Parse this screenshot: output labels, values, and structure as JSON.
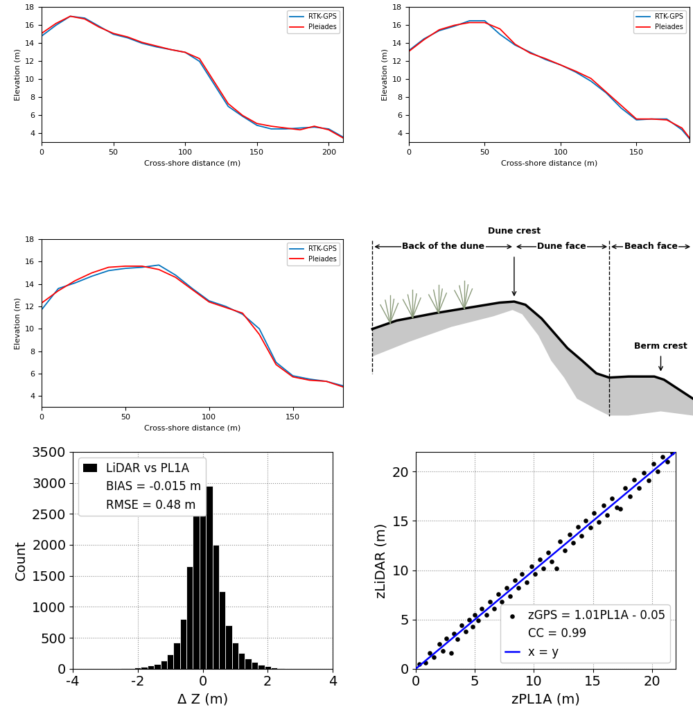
{
  "chart_data": [
    {
      "type": "line",
      "xlabel": "Cross-shore distance (m)",
      "ylabel": "Elevation (m)",
      "x": [
        0,
        10,
        20,
        30,
        40,
        50,
        60,
        70,
        80,
        90,
        100,
        110,
        120,
        130,
        140,
        150,
        160,
        170,
        180,
        190,
        200,
        210
      ],
      "series": [
        {
          "name": "RTK-GPS",
          "color": "#0072bd",
          "values": [
            14.8,
            16.0,
            17.0,
            16.8,
            15.9,
            15.0,
            14.6,
            14.0,
            13.6,
            13.3,
            13.0,
            12.0,
            9.5,
            7.0,
            5.9,
            4.9,
            4.5,
            4.5,
            4.6,
            4.7,
            4.5,
            3.6
          ]
        },
        {
          "name": "Pleiades",
          "color": "#ff0000",
          "values": [
            15.1,
            16.2,
            17.0,
            16.7,
            15.8,
            15.1,
            14.7,
            14.1,
            13.7,
            13.3,
            13.0,
            12.3,
            9.8,
            7.3,
            6.0,
            5.1,
            4.8,
            4.6,
            4.4,
            4.8,
            4.4,
            3.5
          ]
        }
      ],
      "xlim": [
        0,
        210
      ],
      "ylim": [
        3,
        18
      ],
      "xticks": [
        0,
        50,
        100,
        150,
        200
      ],
      "yticks": [
        4,
        6,
        8,
        10,
        12,
        14,
        16,
        18
      ],
      "legend": "upper right",
      "line_style": "solid",
      "grid": false
    },
    {
      "type": "line",
      "xlabel": "Cross-shore distance (m)",
      "ylabel": "Elevation (m)",
      "x": [
        0,
        10,
        20,
        30,
        40,
        50,
        60,
        70,
        80,
        90,
        100,
        110,
        120,
        130,
        140,
        150,
        160,
        170,
        180,
        185
      ],
      "series": [
        {
          "name": "RTK-GPS",
          "color": "#0072bd",
          "values": [
            13.2,
            14.5,
            15.4,
            15.9,
            16.5,
            16.5,
            15.0,
            13.8,
            13.0,
            12.2,
            11.6,
            10.8,
            9.8,
            8.5,
            6.8,
            5.5,
            5.6,
            5.6,
            4.4,
            3.4
          ]
        },
        {
          "name": "Pleiades",
          "color": "#ff0000",
          "values": [
            13.1,
            14.4,
            15.5,
            16.0,
            16.3,
            16.3,
            15.6,
            13.9,
            12.9,
            12.3,
            11.6,
            10.9,
            10.1,
            8.6,
            7.1,
            5.6,
            5.6,
            5.5,
            4.6,
            3.5
          ]
        }
      ],
      "xlim": [
        0,
        185
      ],
      "ylim": [
        3,
        18
      ],
      "xticks": [
        0,
        50,
        100,
        150
      ],
      "yticks": [
        4,
        6,
        8,
        10,
        12,
        14,
        16,
        18
      ],
      "legend": "upper right",
      "line_style": "solid",
      "grid": false
    },
    {
      "type": "line",
      "xlabel": "Cross-shore distance (m)",
      "ylabel": "Elevation (m)",
      "x": [
        0,
        10,
        20,
        30,
        40,
        50,
        60,
        70,
        80,
        90,
        100,
        110,
        120,
        130,
        140,
        150,
        160,
        170,
        180
      ],
      "series": [
        {
          "name": "RTK-GPS",
          "color": "#0072bd",
          "values": [
            11.7,
            13.6,
            14.1,
            14.7,
            15.2,
            15.4,
            15.5,
            15.7,
            14.8,
            13.6,
            12.5,
            12.0,
            11.3,
            10.0,
            7.0,
            5.8,
            5.5,
            5.3,
            4.9
          ]
        },
        {
          "name": "Pleiades",
          "color": "#ff0000",
          "values": [
            12.3,
            13.4,
            14.3,
            15.0,
            15.5,
            15.6,
            15.6,
            15.3,
            14.6,
            13.5,
            12.4,
            11.9,
            11.4,
            9.5,
            6.8,
            5.7,
            5.4,
            5.3,
            4.8
          ]
        }
      ],
      "xlim": [
        0,
        180
      ],
      "ylim": [
        3,
        18
      ],
      "xticks": [
        0,
        50,
        100,
        150
      ],
      "yticks": [
        4,
        6,
        8,
        10,
        12,
        14,
        16,
        18
      ],
      "legend": "upper right",
      "line_style": "solid",
      "grid": false
    },
    {
      "type": "histogram",
      "xlabel": "Δ Z (m)",
      "ylabel": "Count",
      "bins": [
        -2.5,
        -2.3,
        -2.1,
        -1.9,
        -1.7,
        -1.5,
        -1.3,
        -1.1,
        -0.9,
        -0.7,
        -0.5,
        -0.3,
        -0.1,
        0.1,
        0.3,
        0.5,
        0.7,
        0.9,
        1.1,
        1.3,
        1.5,
        1.7,
        1.9,
        2.1,
        2.3,
        2.5
      ],
      "series": [
        {
          "name": "LiDAR vs PL1A",
          "color": "#000000",
          "values": [
            5,
            10,
            20,
            30,
            50,
            80,
            130,
            230,
            420,
            800,
            1650,
            2700,
            3400,
            2950,
            2000,
            1250,
            700,
            420,
            260,
            170,
            110,
            70,
            40,
            20,
            10
          ]
        }
      ],
      "annotations": [
        "BIAS = -0.015 m",
        "RMSE = 0.48 m"
      ],
      "xlim": [
        -4,
        4
      ],
      "ylim": [
        0,
        3500
      ],
      "xticks": [
        -4,
        -2,
        0,
        2,
        4
      ],
      "yticks": [
        0,
        500,
        1000,
        1500,
        2000,
        2500,
        3000,
        3500
      ],
      "legend": "upper left",
      "grid": true
    },
    {
      "type": "scatter",
      "xlabel": "zPL1A (m)",
      "ylabel": "zLiDAR (m)",
      "x": [
        0.3,
        0.8,
        1.2,
        1.5,
        2.0,
        2.3,
        2.6,
        3.0,
        3.2,
        3.5,
        3.9,
        4.2,
        4.5,
        4.8,
        5.0,
        5.3,
        5.6,
        6.0,
        6.3,
        6.6,
        7.0,
        7.3,
        7.7,
        8.0,
        8.4,
        8.7,
        9.0,
        9.4,
        9.8,
        10.1,
        10.5,
        10.8,
        11.2,
        11.5,
        11.9,
        12.2,
        12.6,
        13.0,
        13.3,
        13.7,
        14.0,
        14.4,
        14.8,
        15.1,
        15.5,
        15.9,
        16.2,
        16.6,
        17.0,
        17.3,
        17.7,
        18.1,
        18.5,
        18.9,
        19.3,
        19.7,
        20.1,
        20.5,
        20.9,
        21.3,
        21.7
      ],
      "series": [
        {
          "name": "zGPS = 1.01PL1A - 0.05",
          "color": "#000000",
          "marker": "circle",
          "values": [
            0.5,
            0.6,
            1.6,
            1.2,
            2.5,
            1.8,
            3.1,
            1.6,
            3.6,
            3.0,
            4.4,
            3.8,
            5.0,
            4.3,
            5.5,
            4.9,
            6.1,
            5.5,
            6.8,
            6.1,
            7.6,
            6.8,
            8.2,
            7.4,
            9.0,
            8.2,
            9.6,
            8.8,
            10.4,
            9.6,
            11.1,
            10.2,
            11.8,
            10.9,
            10.2,
            12.9,
            12.0,
            13.6,
            12.8,
            14.4,
            13.5,
            15.0,
            14.3,
            15.8,
            14.9,
            16.6,
            15.6,
            17.3,
            16.4,
            16.2,
            18.3,
            17.5,
            19.2,
            18.3,
            19.9,
            19.1,
            20.8,
            20.0,
            21.5,
            21.0,
            21.9
          ]
        },
        {
          "name": "x = y",
          "type": "line",
          "color": "#0000ff",
          "x": [
            0,
            22
          ],
          "values": [
            0,
            22
          ]
        }
      ],
      "annotations": [
        "CC = 0.99"
      ],
      "xlim": [
        0,
        22
      ],
      "ylim": [
        0,
        22
      ],
      "xticks": [
        0,
        5,
        10,
        15,
        20
      ],
      "yticks": [
        0,
        5,
        10,
        15,
        20
      ],
      "legend": "lower right",
      "grid": true
    }
  ],
  "diagram": {
    "regions": [
      "Back of the dune",
      "Dune face",
      "Beach face"
    ],
    "features": [
      "Dune crest",
      "Berm crest"
    ]
  }
}
